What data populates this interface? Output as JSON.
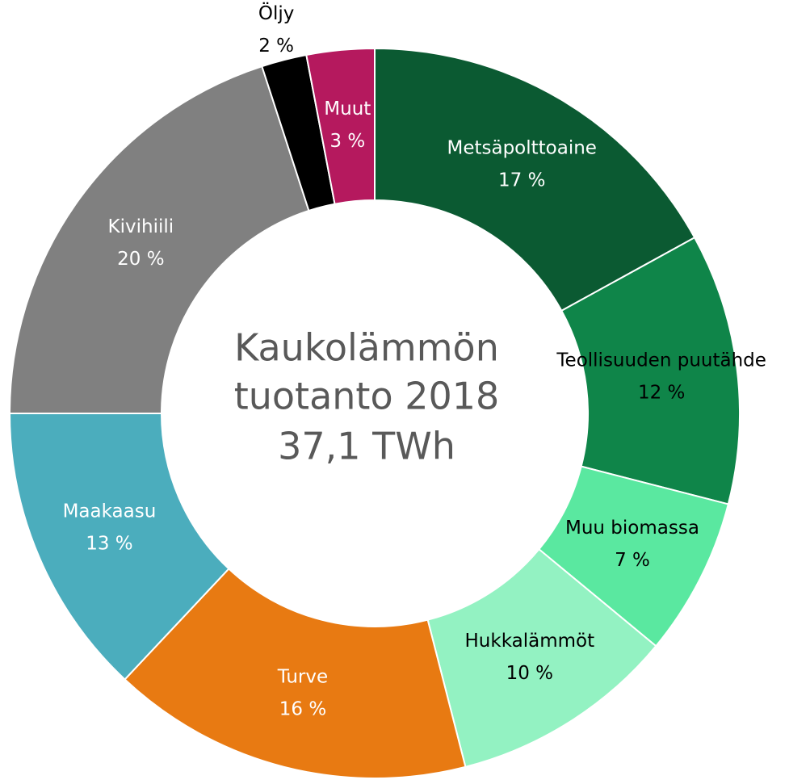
{
  "chart_data": {
    "type": "donut",
    "center_text": [
      "Kaukolämmön",
      "tuotanto 2018",
      "37,1 TWh"
    ],
    "categories": [
      "Metsäpolttoaine",
      "Teollisuuden puutähde",
      "Muu biomassa",
      "Hukkalämmöt",
      "Turve",
      "Maakaasu",
      "Kivihiili",
      "Öljy",
      "Muut"
    ],
    "values": [
      17,
      12,
      7,
      10,
      16,
      13,
      20,
      2,
      3
    ],
    "value_labels": [
      "17 %",
      "12 %",
      "7 %",
      "10 %",
      "16 %",
      "13 %",
      "20 %",
      "2 %",
      "3 %"
    ],
    "colors": [
      "#0b5a32",
      "#0f8549",
      "#5ae8a0",
      "#93f2c2",
      "#e87a12",
      "#4badbd",
      "#808080",
      "#000000",
      "#b5195e"
    ],
    "label_colors": [
      "#ffffff",
      "#000000",
      "#000000",
      "#000000",
      "#ffffff",
      "#ffffff",
      "#ffffff",
      "#000000",
      "#ffffff"
    ]
  }
}
